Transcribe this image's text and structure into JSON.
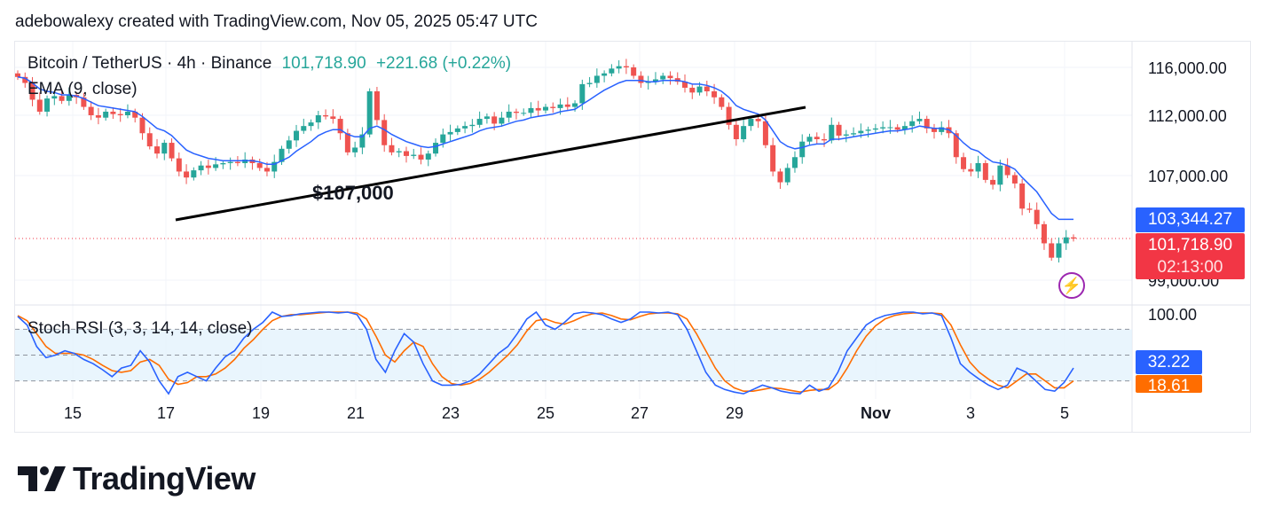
{
  "attribution": "adebowalexy created with TradingView.com, Nov 05, 2025 05:47 UTC",
  "legend": {
    "symbol": "Bitcoin / TetherUS · 4h · Binance",
    "price": "101,718.90",
    "change": "+221.68 (+0.22%)",
    "ema_label": "EMA (9, close)",
    "stoch_label": "Stoch RSI (3, 3, 14, 14, close)"
  },
  "tags": {
    "ema_value": "103,344.27",
    "last_price": "101,718.90",
    "countdown": "02:13:00",
    "stoch_k": "32.22",
    "stoch_d": "18.61"
  },
  "annotation": "$107,000",
  "brand": "TradingView",
  "icons": {
    "logo": "tradingview-logo-icon",
    "alert": "lightning-icon"
  },
  "colors": {
    "up": "#26a69a",
    "down": "#ef5350",
    "ema": "#2962ff",
    "stoch_k": "#2962ff",
    "stoch_d": "#ff6d00",
    "band": "#e3f2fd",
    "last_price": "#f23645"
  },
  "chart_data": {
    "type": "candlestick",
    "symbol": "BTCUSDT",
    "interval": "4h",
    "x_ticks": [
      "15",
      "17",
      "19",
      "21",
      "23",
      "25",
      "27",
      "29",
      "Nov",
      "3",
      "5"
    ],
    "y_ticks": [
      "116,000.00",
      "112,000.00",
      "107,000.00",
      "99,000.00"
    ],
    "y_tick_values": [
      116000,
      112000,
      107000,
      99000
    ],
    "stoch_ticks": [
      "100.00"
    ],
    "stoch_levels": [
      80,
      50,
      20
    ],
    "close": [
      115200,
      114700,
      113300,
      112300,
      113400,
      113600,
      113200,
      113700,
      113500,
      112700,
      112000,
      111800,
      112300,
      112100,
      112000,
      112300,
      111800,
      110500,
      109400,
      108800,
      109700,
      108400,
      107300,
      106800,
      107400,
      107800,
      107600,
      107900,
      108000,
      108100,
      108000,
      108300,
      108000,
      107600,
      107300,
      108100,
      109200,
      109900,
      110700,
      111100,
      111400,
      112000,
      111900,
      111700,
      110500,
      108900,
      109300,
      110400,
      114000,
      111600,
      109500,
      108900,
      109000,
      108600,
      108700,
      108300,
      108800,
      109700,
      110400,
      110600,
      110900,
      111100,
      111200,
      111700,
      111900,
      111300,
      111800,
      112300,
      112200,
      112200,
      112600,
      112400,
      112700,
      112600,
      112900,
      112700,
      113000,
      114600,
      114700,
      115300,
      115500,
      115900,
      116100,
      116000,
      115300,
      114700,
      114800,
      115000,
      115300,
      115100,
      114800,
      114300,
      113900,
      114400,
      114000,
      113500,
      112700,
      111200,
      110000,
      111100,
      111700,
      111500,
      109500,
      107300,
      106400,
      107600,
      108500,
      109800,
      110200,
      110000,
      109900,
      111200,
      110300,
      110400,
      110500,
      110700,
      110800,
      110900,
      111000,
      111000,
      110800,
      111100,
      111500,
      111700,
      110900,
      110600,
      111000,
      110500,
      108500,
      107500,
      107300,
      108000,
      106600,
      106200,
      107800,
      107000,
      106300,
      104200,
      104100,
      102900,
      101300,
      100100,
      101300,
      101800,
      101700
    ],
    "ema": [
      115200,
      115100,
      114700,
      114200,
      114000,
      113900,
      113700,
      113700,
      113600,
      113400,
      113100,
      112800,
      112700,
      112600,
      112500,
      112400,
      112300,
      111900,
      111400,
      110900,
      110700,
      110300,
      109700,
      109100,
      108800,
      108600,
      108400,
      108300,
      108200,
      108200,
      108200,
      108200,
      108200,
      108100,
      107900,
      107900,
      108200,
      108500,
      109000,
      109400,
      109800,
      110300,
      110600,
      110800,
      110800,
      110400,
      110200,
      110200,
      110900,
      111100,
      110800,
      110400,
      110100,
      109800,
      109600,
      109400,
      109300,
      109400,
      109600,
      109800,
      110000,
      110200,
      110400,
      110700,
      110900,
      111000,
      111100,
      111300,
      111500,
      111600,
      111800,
      111900,
      112000,
      112100,
      112300,
      112400,
      112500,
      112900,
      113300,
      113700,
      114100,
      114400,
      114700,
      114900,
      114900,
      114900,
      114800,
      114800,
      114900,
      114900,
      114900,
      114800,
      114600,
      114600,
      114500,
      114300,
      114000,
      113500,
      112800,
      112500,
      112300,
      112100,
      111600,
      110700,
      109800,
      109400,
      109200,
      109300,
      109500,
      109600,
      109600,
      110000,
      110000,
      110100,
      110200,
      110300,
      110400,
      110500,
      110600,
      110700,
      110700,
      110800,
      110900,
      111100,
      111000,
      110900,
      110900,
      110800,
      110300,
      109700,
      109200,
      109000,
      108500,
      108100,
      108000,
      107800,
      107500,
      106800,
      106200,
      105600,
      104700,
      103800,
      103300,
      103300,
      103300
    ],
    "stoch_k": [
      95,
      85,
      60,
      47,
      50,
      55,
      52,
      45,
      40,
      33,
      25,
      35,
      38,
      55,
      42,
      20,
      5,
      25,
      30,
      25,
      20,
      35,
      48,
      55,
      70,
      80,
      88,
      100,
      95,
      96,
      98,
      99,
      100,
      100,
      99,
      100,
      97,
      80,
      45,
      30,
      55,
      75,
      65,
      40,
      20,
      15,
      15,
      16,
      20,
      28,
      40,
      52,
      60,
      75,
      92,
      100,
      85,
      80,
      88,
      98,
      100,
      99,
      97,
      92,
      88,
      92,
      100,
      100,
      99,
      100,
      97,
      80,
      55,
      30,
      15,
      10,
      7,
      5,
      10,
      15,
      12,
      8,
      6,
      5,
      15,
      8,
      12,
      30,
      55,
      70,
      85,
      92,
      96,
      98,
      100,
      100,
      98,
      99,
      96,
      70,
      40,
      30,
      22,
      15,
      10,
      15,
      35,
      30,
      20,
      10,
      8,
      18,
      35
    ],
    "stoch_d": [
      96,
      90,
      75,
      60,
      52,
      52,
      52,
      50,
      45,
      38,
      32,
      30,
      32,
      42,
      45,
      38,
      22,
      16,
      18,
      25,
      25,
      28,
      35,
      45,
      58,
      68,
      80,
      90,
      95,
      97,
      97,
      98,
      99,
      100,
      100,
      100,
      99,
      92,
      72,
      50,
      42,
      55,
      65,
      60,
      40,
      25,
      17,
      15,
      17,
      22,
      30,
      40,
      50,
      62,
      78,
      90,
      92,
      88,
      86,
      90,
      95,
      98,
      99,
      96,
      92,
      91,
      95,
      98,
      99,
      99,
      98,
      92,
      75,
      55,
      35,
      20,
      12,
      8,
      8,
      10,
      12,
      11,
      9,
      7,
      9,
      10,
      10,
      18,
      35,
      55,
      72,
      84,
      92,
      96,
      98,
      99,
      99,
      99,
      98,
      85,
      62,
      42,
      30,
      22,
      15,
      12,
      20,
      28,
      28,
      20,
      12,
      12,
      20
    ]
  }
}
